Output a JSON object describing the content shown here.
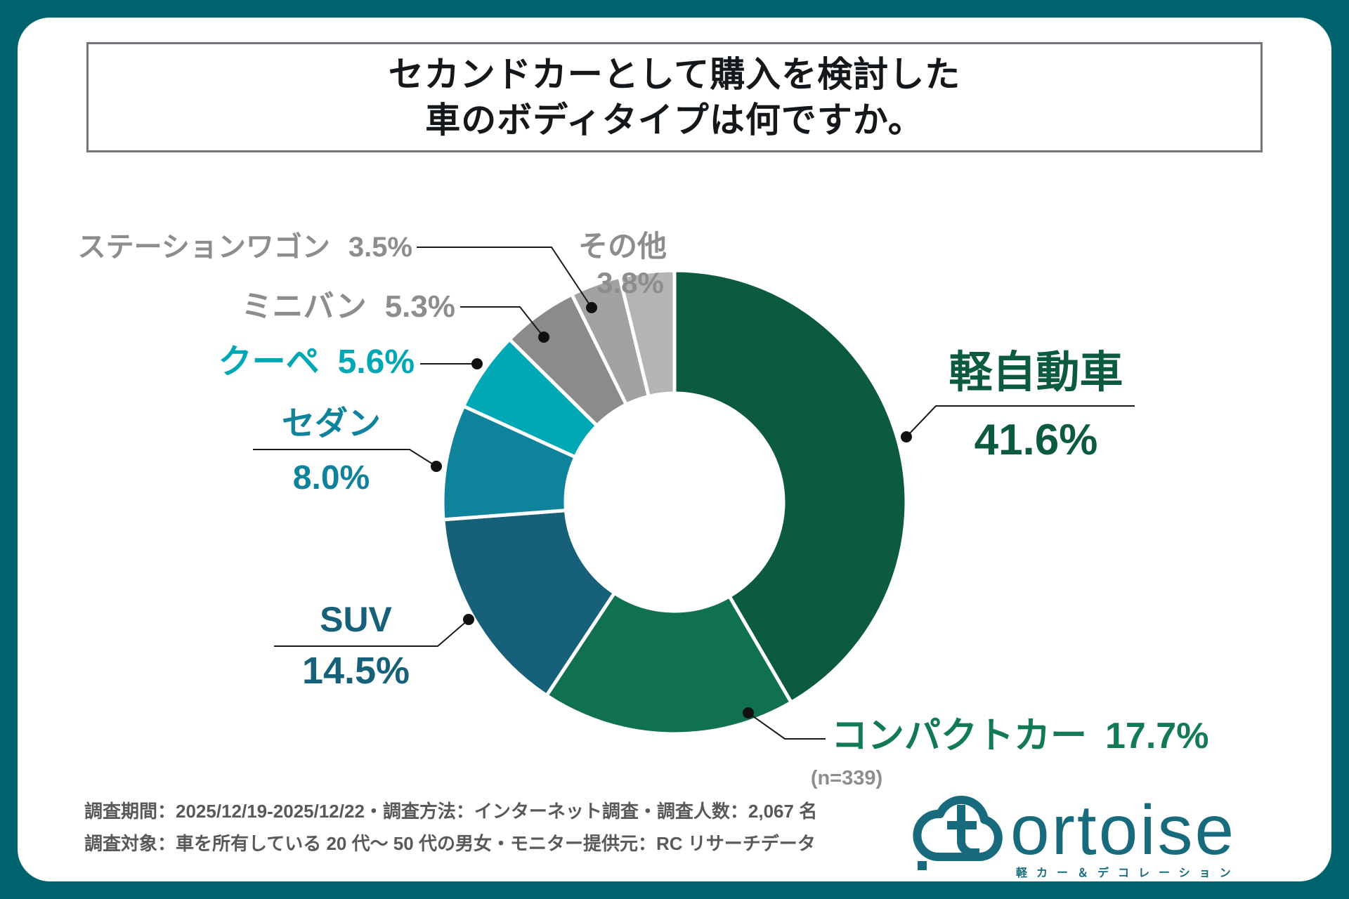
{
  "title": {
    "line1": "セカンドカーとして購入を検討した",
    "line2": "車のボディタイプは何ですか。"
  },
  "chart_data": {
    "type": "pie",
    "donut": true,
    "title": "セカンドカーとして購入を検討した車のボディタイプは何ですか。",
    "sample_label": "(n=339)",
    "legend": "none",
    "layout": {
      "start_angle_deg": 0,
      "clockwise": true,
      "inner_radius_ratio": 0.47,
      "leader_lines": true
    },
    "slices": [
      {
        "label": "軽自動車",
        "value": 41.6,
        "pct_display": "41.6%",
        "color": "#0b5a41",
        "label_color": "#0b5a41"
      },
      {
        "label": "コンパクトカー",
        "value": 17.7,
        "pct_display": "17.7%",
        "color": "#0f7052",
        "label_color": "#127a54"
      },
      {
        "label": "SUV",
        "value": 14.5,
        "pct_display": "14.5%",
        "color": "#17607a",
        "label_color": "#17607a"
      },
      {
        "label": "セダン",
        "value": 8.0,
        "pct_display": "8.0%",
        "color": "#0f829c",
        "label_color": "#0f829c"
      },
      {
        "label": "クーペ",
        "value": 5.6,
        "pct_display": "5.6%",
        "color": "#00a7b4",
        "label_color": "#00a7b4"
      },
      {
        "label": "ミニバン",
        "value": 5.3,
        "pct_display": "5.3%",
        "color": "#8b8b8b",
        "label_color": "#8d8d8d"
      },
      {
        "label": "ステーションワゴン",
        "value": 3.5,
        "pct_display": "3.5%",
        "color": "#a2a2a2",
        "label_color": "#8d8d8d"
      },
      {
        "label": "その他",
        "value": 3.8,
        "pct_display": "3.8%",
        "color": "#b4b4b4",
        "label_color": "#8d8d8d"
      }
    ]
  },
  "footer": {
    "line1": "調査期間：2025/12/19-2025/12/22・調査方法：インターネット調査・調査人数：2,067 名",
    "line2": "調査対象：車を所有している 20 代～ 50 代の男女・モニター提供元：RC リサーチデータ"
  },
  "logo": {
    "wordmark": "ortoise",
    "tagline": "軽カー＆デコレーション",
    "color": "#176b7c"
  },
  "colors": {
    "frame": "#00626d",
    "title_border": "#70767c",
    "leader_line": "#1a1a1a"
  }
}
